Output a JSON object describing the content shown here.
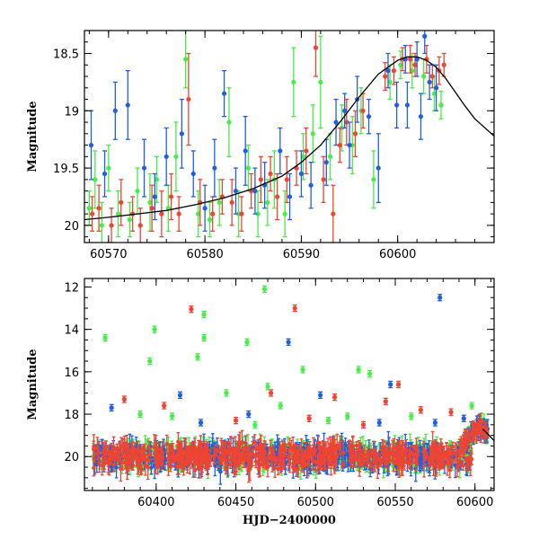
{
  "colors": {
    "green": "#44ee44",
    "red": "#ee4433",
    "blue": "#1f5fe0",
    "model": "#000000"
  },
  "chart_data": [
    {
      "type": "scatter",
      "title": "",
      "xlabel": "",
      "ylabel": "Magnitude",
      "xlim": [
        60567.5,
        60610
      ],
      "ylim": [
        20.15,
        18.3
      ],
      "y_inverted": true,
      "xticks": [
        60570,
        60580,
        60590,
        60600
      ],
      "yticks": [
        18.5,
        19,
        19.5,
        20
      ],
      "xtick_labels": [
        "60570",
        "60580",
        "60590",
        "60600"
      ],
      "ytick_labels": [
        "18.5",
        "19",
        "19.5",
        "20"
      ],
      "grid": false,
      "model_curve": {
        "x": [
          60567.5,
          60570,
          60573,
          60576,
          60579,
          60582,
          60585,
          60588,
          60590,
          60592,
          60594,
          60596,
          60598,
          60600,
          60601,
          60602,
          60603,
          60604,
          60605,
          60606,
          60607,
          60608,
          60610
        ],
        "y": [
          19.95,
          19.93,
          19.9,
          19.87,
          19.82,
          19.76,
          19.68,
          19.57,
          19.45,
          19.3,
          19.1,
          18.88,
          18.68,
          18.56,
          18.53,
          18.53,
          18.56,
          18.62,
          18.72,
          18.84,
          18.96,
          19.07,
          19.22
        ]
      },
      "series": [
        {
          "name": "",
          "color": "green",
          "points": [
            {
              "x": 60568.0,
              "y": 19.85,
              "e": 0.15
            },
            {
              "x": 60568.6,
              "y": 19.6,
              "e": 0.25
            },
            {
              "x": 60569.3,
              "y": 20.0,
              "e": 0.2
            },
            {
              "x": 60570.0,
              "y": 19.5,
              "e": 0.2
            },
            {
              "x": 60571.0,
              "y": 19.9,
              "e": 0.2
            },
            {
              "x": 60572.2,
              "y": 19.95,
              "e": 0.15
            },
            {
              "x": 60573.0,
              "y": 19.7,
              "e": 0.2
            },
            {
              "x": 60574.3,
              "y": 19.8,
              "e": 0.25
            },
            {
              "x": 60575.0,
              "y": 19.6,
              "e": 0.2
            },
            {
              "x": 60576.2,
              "y": 19.85,
              "e": 0.2
            },
            {
              "x": 60577.0,
              "y": 19.4,
              "e": 0.3
            },
            {
              "x": 60578.0,
              "y": 18.55,
              "e": 0.25
            },
            {
              "x": 60579.3,
              "y": 19.9,
              "e": 0.2
            },
            {
              "x": 60580.5,
              "y": 19.95,
              "e": 0.15
            },
            {
              "x": 60581.5,
              "y": 19.8,
              "e": 0.2
            },
            {
              "x": 60582.5,
              "y": 19.1,
              "e": 0.3
            },
            {
              "x": 60583.5,
              "y": 19.9,
              "e": 0.2
            },
            {
              "x": 60584.5,
              "y": 19.5,
              "e": 0.2
            },
            {
              "x": 60585.5,
              "y": 19.9,
              "e": 0.2
            },
            {
              "x": 60586.5,
              "y": 19.8,
              "e": 0.2
            },
            {
              "x": 60587.2,
              "y": 19.6,
              "e": 0.25
            },
            {
              "x": 60588.3,
              "y": 19.9,
              "e": 0.2
            },
            {
              "x": 60589.2,
              "y": 18.75,
              "e": 0.3
            },
            {
              "x": 60590.2,
              "y": 19.4,
              "e": 0.2
            },
            {
              "x": 60591.2,
              "y": 19.2,
              "e": 0.25
            },
            {
              "x": 60592.0,
              "y": 18.75,
              "e": 0.4
            },
            {
              "x": 60593.0,
              "y": 19.4,
              "e": 0.2
            },
            {
              "x": 60594.2,
              "y": 19.15,
              "e": 0.2
            },
            {
              "x": 60595.3,
              "y": 19.3,
              "e": 0.25
            },
            {
              "x": 60596.2,
              "y": 19.0,
              "e": 0.2
            },
            {
              "x": 60597.5,
              "y": 19.6,
              "e": 0.25
            },
            {
              "x": 60599.2,
              "y": 18.75,
              "e": 0.15
            },
            {
              "x": 60600.3,
              "y": 18.6,
              "e": 0.12
            },
            {
              "x": 60601.5,
              "y": 18.65,
              "e": 0.15
            },
            {
              "x": 60602.7,
              "y": 18.7,
              "e": 0.15
            },
            {
              "x": 60603.8,
              "y": 18.85,
              "e": 0.15
            },
            {
              "x": 60604.5,
              "y": 18.95,
              "e": 0.12
            }
          ]
        },
        {
          "name": "",
          "color": "red",
          "points": [
            {
              "x": 60568.3,
              "y": 19.9,
              "e": 0.15
            },
            {
              "x": 60569.0,
              "y": 19.85,
              "e": 0.2
            },
            {
              "x": 60570.3,
              "y": 20.0,
              "e": 0.15
            },
            {
              "x": 60571.3,
              "y": 19.8,
              "e": 0.2
            },
            {
              "x": 60572.5,
              "y": 19.9,
              "e": 0.15
            },
            {
              "x": 60573.3,
              "y": 20.0,
              "e": 0.15
            },
            {
              "x": 60574.5,
              "y": 19.85,
              "e": 0.2
            },
            {
              "x": 60575.5,
              "y": 19.9,
              "e": 0.2
            },
            {
              "x": 60576.5,
              "y": 19.75,
              "e": 0.2
            },
            {
              "x": 60577.3,
              "y": 19.9,
              "e": 0.15
            },
            {
              "x": 60578.3,
              "y": 18.9,
              "e": 0.4
            },
            {
              "x": 60579.5,
              "y": 19.8,
              "e": 0.2
            },
            {
              "x": 60580.8,
              "y": 19.9,
              "e": 0.15
            },
            {
              "x": 60581.8,
              "y": 19.75,
              "e": 0.15
            },
            {
              "x": 60582.8,
              "y": 19.8,
              "e": 0.2
            },
            {
              "x": 60583.8,
              "y": 19.9,
              "e": 0.15
            },
            {
              "x": 60584.8,
              "y": 19.7,
              "e": 0.15
            },
            {
              "x": 60585.8,
              "y": 19.6,
              "e": 0.2
            },
            {
              "x": 60586.8,
              "y": 19.55,
              "e": 0.15
            },
            {
              "x": 60587.5,
              "y": 19.75,
              "e": 0.2
            },
            {
              "x": 60588.5,
              "y": 19.6,
              "e": 0.2
            },
            {
              "x": 60589.5,
              "y": 19.5,
              "e": 0.15
            },
            {
              "x": 60590.5,
              "y": 19.35,
              "e": 0.2
            },
            {
              "x": 60591.5,
              "y": 18.45,
              "e": 0.25
            },
            {
              "x": 60592.3,
              "y": 19.6,
              "e": 0.2
            },
            {
              "x": 60593.3,
              "y": 19.9,
              "e": 0.25
            },
            {
              "x": 60594.0,
              "y": 19.3,
              "e": 0.15
            },
            {
              "x": 60594.7,
              "y": 19.1,
              "e": 0.2
            },
            {
              "x": 60595.6,
              "y": 19.2,
              "e": 0.2
            },
            {
              "x": 60596.4,
              "y": 19.0,
              "e": 0.15
            },
            {
              "x": 60598.7,
              "y": 18.7,
              "e": 0.12
            },
            {
              "x": 60599.6,
              "y": 18.65,
              "e": 0.12
            },
            {
              "x": 60600.5,
              "y": 18.55,
              "e": 0.1
            },
            {
              "x": 60601.3,
              "y": 18.55,
              "e": 0.12
            },
            {
              "x": 60601.8,
              "y": 18.6,
              "e": 0.1
            },
            {
              "x": 60603.0,
              "y": 18.55,
              "e": 0.12
            },
            {
              "x": 60603.6,
              "y": 18.7,
              "e": 0.1
            },
            {
              "x": 60604.3,
              "y": 18.65,
              "e": 0.12
            },
            {
              "x": 60604.8,
              "y": 18.6,
              "e": 0.1
            }
          ]
        },
        {
          "name": "",
          "color": "blue",
          "points": [
            {
              "x": 60568.2,
              "y": 19.3,
              "e": 0.3
            },
            {
              "x": 60569.6,
              "y": 19.55,
              "e": 0.2
            },
            {
              "x": 60570.7,
              "y": 19.0,
              "e": 0.25
            },
            {
              "x": 60572.0,
              "y": 18.95,
              "e": 0.3
            },
            {
              "x": 60573.7,
              "y": 19.5,
              "e": 0.25
            },
            {
              "x": 60574.8,
              "y": 19.75,
              "e": 0.2
            },
            {
              "x": 60576.0,
              "y": 19.4,
              "e": 0.25
            },
            {
              "x": 60577.6,
              "y": 19.2,
              "e": 0.3
            },
            {
              "x": 60578.8,
              "y": 19.55,
              "e": 0.2
            },
            {
              "x": 60580.0,
              "y": 19.85,
              "e": 0.2
            },
            {
              "x": 60581.0,
              "y": 19.5,
              "e": 0.25
            },
            {
              "x": 60582.0,
              "y": 18.85,
              "e": 0.2
            },
            {
              "x": 60583.2,
              "y": 19.7,
              "e": 0.2
            },
            {
              "x": 60584.2,
              "y": 19.35,
              "e": 0.3
            },
            {
              "x": 60585.2,
              "y": 19.7,
              "e": 0.2
            },
            {
              "x": 60586.2,
              "y": 19.65,
              "e": 0.2
            },
            {
              "x": 60587.8,
              "y": 19.35,
              "e": 0.2
            },
            {
              "x": 60588.8,
              "y": 19.75,
              "e": 0.2
            },
            {
              "x": 60590.0,
              "y": 19.55,
              "e": 0.2
            },
            {
              "x": 60591.0,
              "y": 19.65,
              "e": 0.2
            },
            {
              "x": 60592.6,
              "y": 19.45,
              "e": 0.2
            },
            {
              "x": 60593.6,
              "y": 19.1,
              "e": 0.2
            },
            {
              "x": 60594.5,
              "y": 19.0,
              "e": 0.15
            },
            {
              "x": 60595.0,
              "y": 19.3,
              "e": 0.2
            },
            {
              "x": 60595.8,
              "y": 18.9,
              "e": 0.2
            },
            {
              "x": 60597.0,
              "y": 19.05,
              "e": 0.15
            },
            {
              "x": 60598.0,
              "y": 19.5,
              "e": 0.3
            },
            {
              "x": 60599.0,
              "y": 18.65,
              "e": 0.15
            },
            {
              "x": 60599.9,
              "y": 18.95,
              "e": 0.2
            },
            {
              "x": 60600.8,
              "y": 18.55,
              "e": 0.12
            },
            {
              "x": 60601.0,
              "y": 18.95,
              "e": 0.2
            },
            {
              "x": 60602.0,
              "y": 18.55,
              "e": 0.15
            },
            {
              "x": 60602.4,
              "y": 19.05,
              "e": 0.2
            },
            {
              "x": 60602.8,
              "y": 18.35,
              "e": 0.15
            },
            {
              "x": 60603.3,
              "y": 18.75,
              "e": 0.15
            },
            {
              "x": 60604.0,
              "y": 18.8,
              "e": 0.2
            }
          ]
        }
      ]
    },
    {
      "type": "scatter",
      "title": "",
      "xlabel": "HJD−2400000",
      "ylabel": "Magnitude",
      "xlim": [
        60355,
        60612
      ],
      "ylim": [
        21.6,
        11.6
      ],
      "y_inverted": true,
      "xticks": [
        60400,
        60450,
        60500,
        60550,
        60600
      ],
      "yticks": [
        12,
        14,
        16,
        18,
        20
      ],
      "xtick_labels": [
        "60400",
        "60450",
        "60500",
        "60550",
        "60600"
      ],
      "ytick_labels": [
        "12",
        "14",
        "16",
        "18",
        "20"
      ],
      "grid": false,
      "band": {
        "x_start": 60360,
        "x_end": 60598,
        "center_mag": 20.0,
        "spread_mag": 0.6
      },
      "rise": {
        "x": [
          60590,
          60595,
          60600,
          60604,
          60608
        ],
        "y": [
          19.7,
          19.3,
          18.7,
          18.6,
          18.9
        ]
      },
      "outliers": [
        {
          "x": 60368,
          "y": 14.4,
          "c": "green"
        },
        {
          "x": 60396,
          "y": 15.5,
          "c": "green"
        },
        {
          "x": 60399,
          "y": 14.0,
          "c": "green"
        },
        {
          "x": 60422,
          "y": 13.05,
          "c": "red"
        },
        {
          "x": 60426,
          "y": 15.3,
          "c": "green"
        },
        {
          "x": 60430,
          "y": 13.3,
          "c": "green"
        },
        {
          "x": 60430,
          "y": 14.4,
          "c": "green"
        },
        {
          "x": 60457,
          "y": 14.6,
          "c": "green"
        },
        {
          "x": 60468,
          "y": 12.1,
          "c": "green"
        },
        {
          "x": 60483,
          "y": 14.6,
          "c": "blue"
        },
        {
          "x": 60487,
          "y": 13.0,
          "c": "red"
        },
        {
          "x": 60470,
          "y": 16.7,
          "c": "green"
        },
        {
          "x": 60492,
          "y": 15.9,
          "c": "green"
        },
        {
          "x": 60527,
          "y": 15.9,
          "c": "green"
        },
        {
          "x": 60534,
          "y": 16.1,
          "c": "green"
        },
        {
          "x": 60547,
          "y": 16.6,
          "c": "blue"
        },
        {
          "x": 60552,
          "y": 16.6,
          "c": "red"
        },
        {
          "x": 60578,
          "y": 12.5,
          "c": "blue"
        },
        {
          "x": 60415,
          "y": 17.1,
          "c": "blue"
        },
        {
          "x": 60444,
          "y": 17.0,
          "c": "green"
        },
        {
          "x": 60472,
          "y": 17.0,
          "c": "red"
        },
        {
          "x": 60503,
          "y": 17.1,
          "c": "blue"
        },
        {
          "x": 60512,
          "y": 17.2,
          "c": "red"
        },
        {
          "x": 60544,
          "y": 17.4,
          "c": "red"
        },
        {
          "x": 60598,
          "y": 17.6,
          "c": "green"
        },
        {
          "x": 60372,
          "y": 17.7,
          "c": "blue"
        },
        {
          "x": 60380,
          "y": 17.3,
          "c": "red"
        },
        {
          "x": 60390,
          "y": 18.0,
          "c": "green"
        },
        {
          "x": 60405,
          "y": 17.6,
          "c": "red"
        },
        {
          "x": 60450,
          "y": 18.3,
          "c": "red"
        },
        {
          "x": 60458,
          "y": 18.0,
          "c": "blue"
        },
        {
          "x": 60478,
          "y": 17.6,
          "c": "green"
        },
        {
          "x": 60496,
          "y": 18.2,
          "c": "red"
        },
        {
          "x": 60520,
          "y": 18.1,
          "c": "green"
        },
        {
          "x": 60540,
          "y": 18.4,
          "c": "blue"
        },
        {
          "x": 60560,
          "y": 18.1,
          "c": "green"
        },
        {
          "x": 60566,
          "y": 17.8,
          "c": "red"
        },
        {
          "x": 60585,
          "y": 17.9,
          "c": "red"
        },
        {
          "x": 60593,
          "y": 18.2,
          "c": "blue"
        },
        {
          "x": 60410,
          "y": 18.1,
          "c": "green"
        },
        {
          "x": 60428,
          "y": 18.4,
          "c": "blue"
        },
        {
          "x": 60462,
          "y": 18.5,
          "c": "green"
        },
        {
          "x": 60508,
          "y": 18.3,
          "c": "green"
        },
        {
          "x": 60530,
          "y": 18.5,
          "c": "red"
        },
        {
          "x": 60575,
          "y": 18.4,
          "c": "blue"
        }
      ]
    }
  ]
}
